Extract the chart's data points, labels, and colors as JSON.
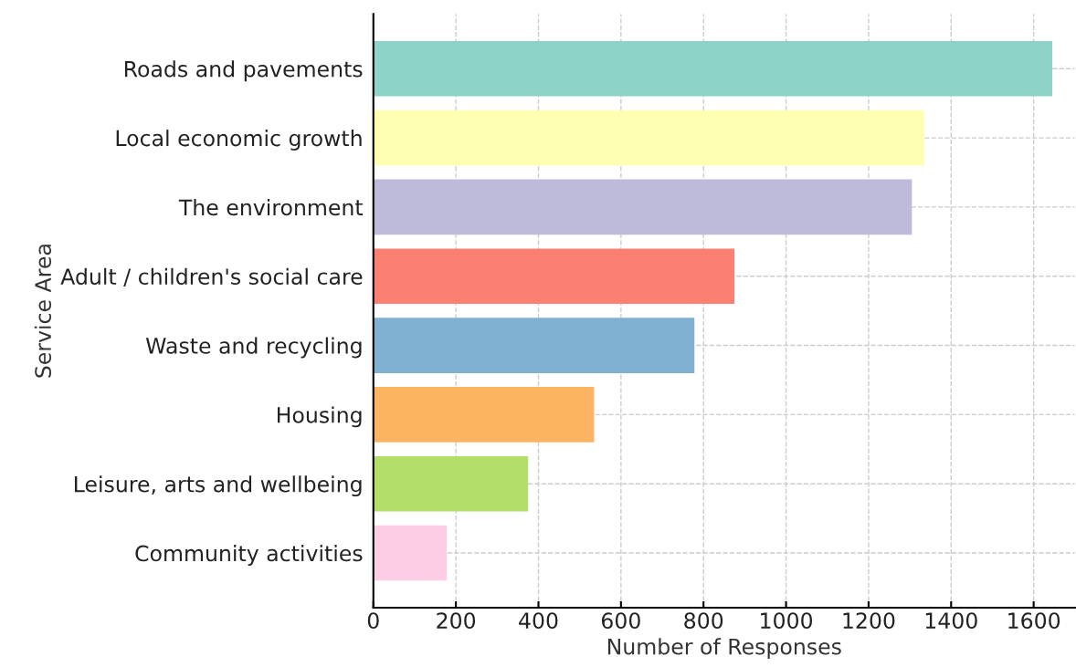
{
  "chart_data": {
    "type": "bar",
    "orientation": "horizontal",
    "xlabel": "Number of Responses",
    "ylabel": "Service Area",
    "categories": [
      "Roads and pavements",
      "Local economic growth",
      "The environment",
      "Adult / children's social care",
      "Waste and recycling",
      "Housing",
      "Leisure, arts and wellbeing",
      "Community activities"
    ],
    "values": [
      1645,
      1335,
      1305,
      875,
      778,
      535,
      375,
      178
    ],
    "colors": [
      "#8dd3c7",
      "#ffffb3",
      "#bebada",
      "#fb8072",
      "#80b1d3",
      "#fdb462",
      "#b3de69",
      "#fccde5"
    ],
    "xlim": [
      0,
      1700
    ],
    "xticks": [
      0,
      200,
      400,
      600,
      800,
      1000,
      1200,
      1400,
      1600
    ],
    "grid": true
  }
}
